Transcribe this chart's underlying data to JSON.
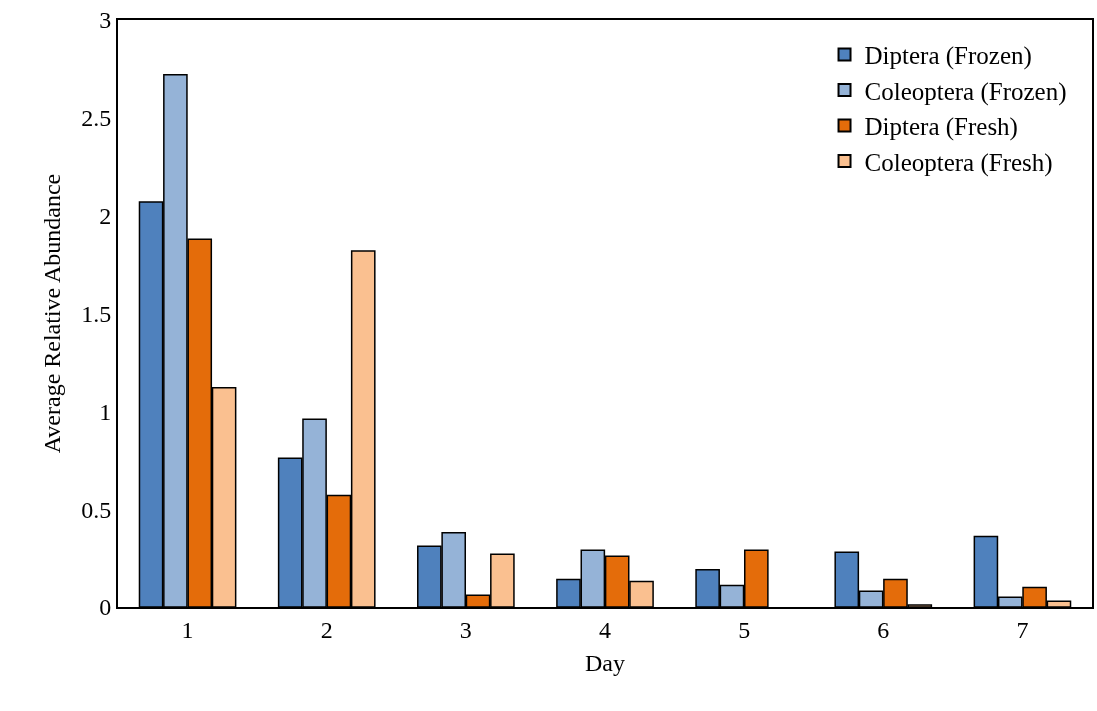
{
  "chart_data": {
    "type": "bar",
    "xlabel": "Day",
    "ylabel": "Average Relative Abundance",
    "categories": [
      "1",
      "2",
      "3",
      "4",
      "5",
      "6",
      "7"
    ],
    "series": [
      {
        "name": "Diptera (Frozen)",
        "color": "#4f81bd",
        "values": [
          2.07,
          0.76,
          0.31,
          0.14,
          0.19,
          0.28,
          0.36
        ]
      },
      {
        "name": "Coleoptera (Frozen)",
        "color": "#95b3d7",
        "values": [
          2.72,
          0.96,
          0.38,
          0.29,
          0.11,
          0.08,
          0.05
        ]
      },
      {
        "name": "Diptera (Fresh)",
        "color": "#e46c0a",
        "values": [
          1.88,
          0.57,
          0.06,
          0.26,
          0.29,
          0.14,
          0.1
        ]
      },
      {
        "name": "Coleoptera (Fresh)",
        "color": "#fac090",
        "values": [
          1.12,
          1.82,
          0.27,
          0.13,
          null,
          0.01,
          0.03
        ]
      }
    ],
    "ylim": [
      0,
      3
    ],
    "yticks": [
      0,
      0.5,
      1,
      1.5,
      2,
      2.5,
      3
    ],
    "legend": "top right"
  }
}
